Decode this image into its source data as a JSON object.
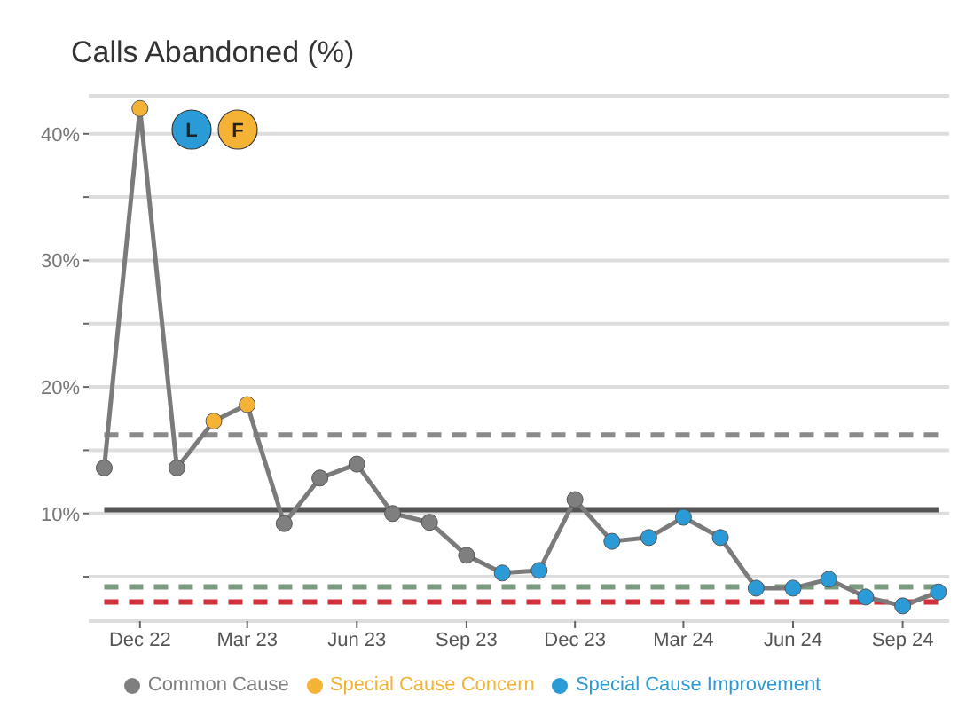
{
  "chart_data": {
    "type": "scatter",
    "title": "Calls Abandoned (%)",
    "x": [
      "2022-11",
      "2022-12",
      "2023-01",
      "2023-02",
      "2023-03",
      "2023-04",
      "2023-05",
      "2023-06",
      "2023-07",
      "2023-08",
      "2023-09",
      "2023-10",
      "2023-11",
      "2023-12",
      "2024-01",
      "2024-02",
      "2024-03",
      "2024-04",
      "2024-05",
      "2024-06",
      "2024-07",
      "2024-08",
      "2024-09",
      "2024-10"
    ],
    "series": [
      {
        "type": "line",
        "color": "#7b7b7b",
        "marker": "none",
        "values": [
          13.6,
          42,
          13.6,
          17.3,
          18.6,
          9.2,
          12.8,
          13.9,
          10.0,
          9.3,
          6.7,
          5.3,
          5.5,
          11.1,
          7.8,
          8.1,
          9.7,
          8.1,
          4.1,
          4.1,
          4.8,
          3.4,
          2.7,
          3.8
        ]
      },
      {
        "name": "Common Cause",
        "color": "#7f7f7f",
        "values": [
          13.6,
          null,
          13.6,
          null,
          null,
          9.2,
          12.8,
          13.9,
          10.0,
          9.3,
          6.7,
          null,
          null,
          11.1,
          null,
          null,
          null,
          null,
          null,
          null,
          null,
          null,
          null,
          null
        ]
      },
      {
        "name": "Special Cause Concern",
        "color": "#f5b335",
        "values": [
          null,
          42,
          null,
          17.3,
          18.6,
          null,
          null,
          null,
          null,
          null,
          null,
          null,
          null,
          null,
          null,
          null,
          null,
          null,
          null,
          null,
          null,
          null,
          null,
          null
        ]
      },
      {
        "name": "Special Cause Improvement",
        "color": "#2a9bd6",
        "values": [
          null,
          null,
          null,
          null,
          null,
          null,
          null,
          null,
          null,
          null,
          null,
          5.3,
          5.5,
          null,
          7.8,
          8.1,
          9.7,
          8.1,
          4.1,
          4.1,
          4.8,
          3.4,
          2.7,
          3.8
        ]
      }
    ],
    "xlim": [
      "2022-10-19",
      "2024-10-10"
    ],
    "xticks": [
      {
        "value": "2022-12",
        "label": "Dec 22"
      },
      {
        "value": "2023-03",
        "label": "Mar 23"
      },
      {
        "value": "2023-06",
        "label": "Jun 23"
      },
      {
        "value": "2023-09",
        "label": "Sep 23"
      },
      {
        "value": "2023-12",
        "label": "Dec 23"
      },
      {
        "value": "2024-03",
        "label": "Mar 24"
      },
      {
        "value": "2024-06",
        "label": "Jun 24"
      },
      {
        "value": "2024-09",
        "label": "Sep 24"
      }
    ],
    "ylim": [
      1.5,
      43
    ],
    "yticks": [
      {
        "value": 5,
        "label": null
      },
      {
        "value": 10,
        "label": "10%"
      },
      {
        "value": 15,
        "label": null
      },
      {
        "value": 20,
        "label": "20%"
      },
      {
        "value": 25,
        "label": null
      },
      {
        "value": 30,
        "label": "30%"
      },
      {
        "value": 35,
        "label": null
      },
      {
        "value": 40,
        "label": "40%"
      }
    ],
    "ref_lines": [
      {
        "axis": "y",
        "value": 10.3,
        "color": "#555555",
        "line_style": "solid"
      },
      {
        "axis": "y",
        "value": 16.2,
        "color": "#8a8a8a",
        "line_style": "dashed"
      },
      {
        "axis": "y",
        "value": 4.2,
        "color": "#7a9a80",
        "line_style": "dashed"
      },
      {
        "axis": "y",
        "value": 3.0,
        "color": "#d0313a",
        "line_style": "dashed"
      }
    ],
    "annotations": [
      "L",
      "F"
    ],
    "grid": "y",
    "legend": "bottom",
    "marker": "circle"
  }
}
